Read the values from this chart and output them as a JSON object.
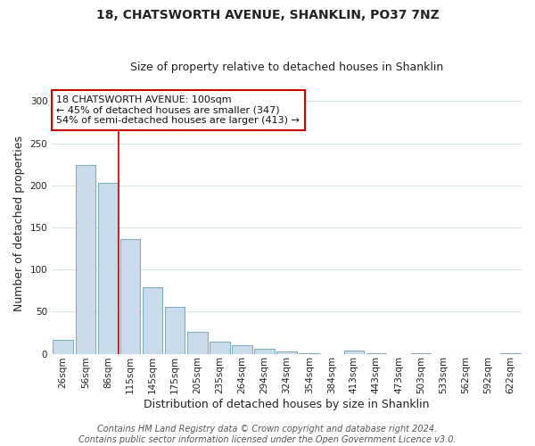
{
  "title": "18, CHATSWORTH AVENUE, SHANKLIN, PO37 7NZ",
  "subtitle": "Size of property relative to detached houses in Shanklin",
  "xlabel": "Distribution of detached houses by size in Shanklin",
  "ylabel": "Number of detached properties",
  "bar_labels": [
    "26sqm",
    "56sqm",
    "86sqm",
    "115sqm",
    "145sqm",
    "175sqm",
    "205sqm",
    "235sqm",
    "264sqm",
    "294sqm",
    "324sqm",
    "354sqm",
    "384sqm",
    "413sqm",
    "443sqm",
    "473sqm",
    "503sqm",
    "533sqm",
    "562sqm",
    "592sqm",
    "622sqm"
  ],
  "bar_values": [
    16,
    224,
    203,
    136,
    79,
    56,
    26,
    14,
    10,
    6,
    3,
    1,
    0,
    4,
    1,
    0,
    1,
    0,
    0,
    0,
    1
  ],
  "bar_color": "#c9daea",
  "bar_edge_color": "#7aaabf",
  "vline_x_idx": 2,
  "vline_color": "#cc0000",
  "annotation_line1": "18 CHATSWORTH AVENUE: 100sqm",
  "annotation_line2": "← 45% of detached houses are smaller (347)",
  "annotation_line3": "54% of semi-detached houses are larger (413) →",
  "annotation_box_facecolor": "#ffffff",
  "annotation_box_edgecolor": "#cc0000",
  "ylim": [
    0,
    310
  ],
  "yticks": [
    0,
    50,
    100,
    150,
    200,
    250,
    300
  ],
  "plot_bg_color": "#ffffff",
  "fig_bg_color": "#ffffff",
  "grid_color": "#d8e4ec",
  "title_fontsize": 10,
  "subtitle_fontsize": 9,
  "axis_label_fontsize": 9,
  "tick_fontsize": 7.5,
  "annotation_fontsize": 8,
  "footer_fontsize": 7,
  "footer_line1": "Contains HM Land Registry data © Crown copyright and database right 2024.",
  "footer_line2": "Contains public sector information licensed under the Open Government Licence v3.0."
}
